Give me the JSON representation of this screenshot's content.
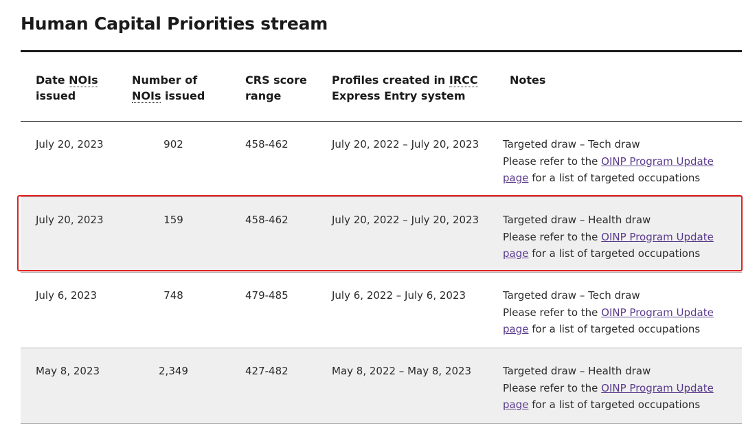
{
  "title": "Human Capital Priorities stream",
  "headers": {
    "date_prefix": "Date ",
    "date_abbr": "NOIs",
    "date_suffix": "issued",
    "number_prefix": "Number of",
    "number_abbr": "NOIs",
    "number_suffix": " issued",
    "crs": "CRS score range",
    "profiles_prefix": "Profiles created in ",
    "profiles_abbr": "IRCC",
    "profiles_suffix": "Express Entry system",
    "notes": "Notes"
  },
  "rows": [
    {
      "date": "July 20, 2023",
      "number": "902",
      "crs": "458-462",
      "profiles": "July 20, 2022 – July 20, 2023",
      "notes_line1": "Targeted draw – Tech draw",
      "notes_prefix": "Please refer to the ",
      "link_text": "OINP Program Update page",
      "notes_suffix": " for a list of targeted occupations"
    },
    {
      "date": "July 20, 2023",
      "number": "159",
      "crs": "458-462",
      "profiles": "July 20, 2022 – July 20, 2023",
      "notes_line1": "Targeted draw – Health draw",
      "notes_prefix": "Please refer to the ",
      "link_text": "OINP Program Update page",
      "notes_suffix": " for a list of targeted occupations"
    },
    {
      "date": "July 6, 2023",
      "number": "748",
      "crs": "479-485",
      "profiles": "July 6, 2022 – July 6, 2023",
      "notes_line1": "Targeted draw – Tech draw",
      "notes_prefix": "Please refer to the ",
      "link_text": "OINP Program Update page",
      "notes_suffix": " for a list of targeted occupations"
    },
    {
      "date": "May 8, 2023",
      "number": "2,349",
      "crs": "427-482",
      "profiles": "May 8, 2022 – May 8, 2023",
      "notes_line1": "Targeted draw – Health draw",
      "notes_prefix": "Please refer to the ",
      "link_text": "OINP Program Update page",
      "notes_suffix": " for a list of targeted occupations"
    }
  ],
  "colors": {
    "highlight": "#e02020",
    "link": "#5a3a8c",
    "shaded_row": "#efefef"
  }
}
